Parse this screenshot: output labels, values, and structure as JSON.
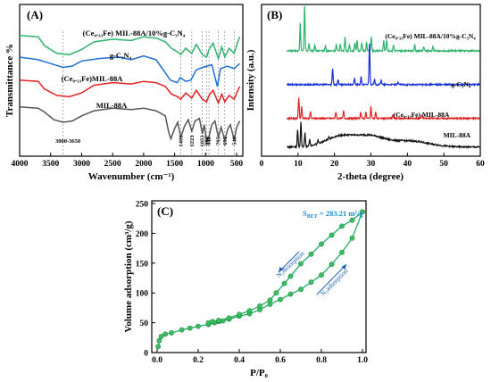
{
  "chart_data": [
    {
      "type": "line",
      "panel_label": "(A)",
      "xlabel": "Wavenumber (cm⁻¹)",
      "ylabel": "Transmittance %",
      "xlim": [
        4000,
        400
      ],
      "x_reversed": true,
      "x_ticks": [
        "4000",
        "3500",
        "3000",
        "2500",
        "2000",
        "1500",
        "1000",
        "500"
      ],
      "reference_lines": [
        3300,
        1401,
        1223,
        1053,
        984,
        946,
        795,
        691,
        540
      ],
      "annotations": [
        "3000-3650",
        "1401",
        "1223",
        "1053",
        "984",
        "946",
        "795",
        "691",
        "540"
      ],
      "series": [
        {
          "name": "(Ce₀.₃₃Fe) MIL-88A/10%g-C₃N₄",
          "color": "#2db36b",
          "offset": 3,
          "points": [
            [
              4000,
              8.9
            ],
            [
              3700,
              8.8
            ],
            [
              3600,
              8.1
            ],
            [
              3400,
              7.5
            ],
            [
              3200,
              7.4
            ],
            [
              3000,
              7.8
            ],
            [
              2800,
              8.4
            ],
            [
              2500,
              8.6
            ],
            [
              2200,
              8.5
            ],
            [
              2000,
              8.8
            ],
            [
              1800,
              8.7
            ],
            [
              1650,
              8.4
            ],
            [
              1550,
              7.9
            ],
            [
              1450,
              7.6
            ],
            [
              1401,
              7.4
            ],
            [
              1320,
              7.9
            ],
            [
              1223,
              7.5
            ],
            [
              1150,
              8.2
            ],
            [
              1053,
              7.4
            ],
            [
              984,
              7.2
            ],
            [
              946,
              7.8
            ],
            [
              880,
              8.3
            ],
            [
              795,
              7.1
            ],
            [
              740,
              8.0
            ],
            [
              691,
              7.2
            ],
            [
              620,
              7.9
            ],
            [
              540,
              7.5
            ],
            [
              480,
              8.4
            ],
            [
              450,
              8.8
            ]
          ]
        },
        {
          "name": "g-C₃N₄",
          "color": "#1f6fd1",
          "offset": 2,
          "points": [
            [
              4000,
              7.2
            ],
            [
              3700,
              7.0
            ],
            [
              3500,
              6.7
            ],
            [
              3300,
              6.4
            ],
            [
              3150,
              6.5
            ],
            [
              3000,
              6.9
            ],
            [
              2700,
              7.1
            ],
            [
              2400,
              7.2
            ],
            [
              2200,
              7.0
            ],
            [
              2000,
              7.3
            ],
            [
              1800,
              7.0
            ],
            [
              1640,
              5.9
            ],
            [
              1570,
              5.4
            ],
            [
              1460,
              5.2
            ],
            [
              1410,
              5.6
            ],
            [
              1320,
              5.3
            ],
            [
              1240,
              5.4
            ],
            [
              1150,
              6.2
            ],
            [
              1050,
              6.4
            ],
            [
              900,
              6.6
            ],
            [
              810,
              4.9
            ],
            [
              760,
              6.3
            ],
            [
              650,
              6.5
            ],
            [
              540,
              6.3
            ],
            [
              450,
              6.7
            ]
          ]
        },
        {
          "name": "(Ce₀.₃₃Fe)MIL-88A",
          "color": "#e32222",
          "offset": 1,
          "points": [
            [
              4000,
              5.4
            ],
            [
              3700,
              5.3
            ],
            [
              3600,
              4.7
            ],
            [
              3400,
              4.2
            ],
            [
              3200,
              4.1
            ],
            [
              3000,
              4.4
            ],
            [
              2800,
              5.0
            ],
            [
              2500,
              5.2
            ],
            [
              2200,
              5.1
            ],
            [
              2000,
              5.3
            ],
            [
              1800,
              5.2
            ],
            [
              1650,
              4.9
            ],
            [
              1550,
              4.3
            ],
            [
              1450,
              4.1
            ],
            [
              1401,
              3.9
            ],
            [
              1320,
              4.4
            ],
            [
              1223,
              4.0
            ],
            [
              1150,
              4.6
            ],
            [
              1053,
              3.9
            ],
            [
              984,
              3.7
            ],
            [
              946,
              4.2
            ],
            [
              880,
              4.6
            ],
            [
              795,
              3.6
            ],
            [
              740,
              4.3
            ],
            [
              691,
              3.7
            ],
            [
              620,
              4.2
            ],
            [
              540,
              3.9
            ],
            [
              480,
              4.6
            ],
            [
              450,
              4.9
            ]
          ]
        },
        {
          "name": "MIL-88A",
          "color": "#555555",
          "offset": 0,
          "points": [
            [
              4000,
              3.3
            ],
            [
              3700,
              3.2
            ],
            [
              3600,
              2.9
            ],
            [
              3450,
              2.3
            ],
            [
              3300,
              2.1
            ],
            [
              3150,
              2.2
            ],
            [
              3000,
              2.6
            ],
            [
              2800,
              3.0
            ],
            [
              2500,
              3.2
            ],
            [
              2200,
              3.1
            ],
            [
              2000,
              3.2
            ],
            [
              1800,
              3.0
            ],
            [
              1650,
              2.6
            ],
            [
              1600,
              1.4
            ],
            [
              1560,
              0.8
            ],
            [
              1500,
              1.6
            ],
            [
              1450,
              2.1
            ],
            [
              1401,
              0.9
            ],
            [
              1340,
              1.8
            ],
            [
              1280,
              2.3
            ],
            [
              1223,
              1.4
            ],
            [
              1170,
              2.2
            ],
            [
              1100,
              2.4
            ],
            [
              1053,
              1.2
            ],
            [
              1020,
              1.9
            ],
            [
              984,
              0.6
            ],
            [
              946,
              1.0
            ],
            [
              900,
              1.9
            ],
            [
              850,
              2.2
            ],
            [
              795,
              0.9
            ],
            [
              750,
              1.7
            ],
            [
              691,
              0.7
            ],
            [
              640,
              1.6
            ],
            [
              600,
              1.9
            ],
            [
              540,
              0.7
            ],
            [
              500,
              1.7
            ],
            [
              450,
              2.2
            ]
          ]
        }
      ]
    },
    {
      "type": "line",
      "panel_label": "(B)",
      "xlabel": "2-theta (degree)",
      "ylabel": "Intensity (a.u.)",
      "xlim": [
        0,
        60
      ],
      "x_ticks": [
        "0",
        "10",
        "20",
        "30",
        "40",
        "50",
        "60"
      ],
      "series": [
        {
          "name": "(Ce₀.₃₃Fe) MIL-88A/10%g-C₃N₄",
          "color": "#2db36b",
          "base": 8.0,
          "peaks": [
            [
              10.6,
              2.2
            ],
            [
              11.8,
              3.6
            ],
            [
              13.0,
              0.6
            ],
            [
              14.6,
              0.5
            ],
            [
              17.5,
              0.4
            ],
            [
              20.5,
              0.5
            ],
            [
              21.6,
              0.6
            ],
            [
              22.9,
              1.1
            ],
            [
              24.1,
              0.5
            ],
            [
              25.6,
              0.6
            ],
            [
              26.2,
              0.9
            ],
            [
              27.5,
              0.6
            ],
            [
              28.8,
              0.7
            ],
            [
              30.1,
              1.1
            ],
            [
              33.5,
              0.8
            ],
            [
              34.3,
              0.9
            ],
            [
              36.2,
              0.5
            ],
            [
              42.0,
              0.5
            ],
            [
              44.5,
              0.3
            ],
            [
              47.0,
              0.3
            ]
          ]
        },
        {
          "name": "g-C₃N₄",
          "color": "#1530d6",
          "base": 5.3,
          "peaks": [
            [
              19.5,
              1.3
            ],
            [
              21.0,
              0.4
            ],
            [
              25.5,
              0.5
            ],
            [
              27.3,
              0.6
            ],
            [
              29.6,
              3.3
            ],
            [
              31.0,
              0.4
            ],
            [
              32.8,
              0.4
            ],
            [
              37.5,
              0.2
            ]
          ]
        },
        {
          "name": "(Ce₀.₃₃Fe) MIL-88A",
          "color": "#e32222",
          "base": 2.6,
          "peaks": [
            [
              10.2,
              1.6
            ],
            [
              11.0,
              0.9
            ],
            [
              13.4,
              0.5
            ],
            [
              20.4,
              0.5
            ],
            [
              22.5,
              0.6
            ],
            [
              27.2,
              0.5
            ],
            [
              28.6,
              0.5
            ],
            [
              30.0,
              0.9
            ],
            [
              31.3,
              0.5
            ],
            [
              36.0,
              0.3
            ],
            [
              44.0,
              0.3
            ]
          ]
        },
        {
          "name": "MIL-88A",
          "color": "#111111",
          "base": 0.3,
          "peaks": [
            [
              9.9,
              1.4
            ],
            [
              10.8,
              2.0
            ],
            [
              11.9,
              1.1
            ],
            [
              13.2,
              0.5
            ],
            [
              15.5,
              0.3
            ],
            [
              18.5,
              0.2
            ]
          ],
          "humps": [
            [
              22.0,
              6.0,
              0.9
            ],
            [
              30.0,
              5.0,
              0.7
            ],
            [
              40.0,
              8.0,
              0.5
            ]
          ]
        }
      ]
    },
    {
      "type": "line",
      "panel_label": "(C)",
      "xlabel": "P/P₀",
      "ylabel": "Volume adsorption (cm³/g)",
      "xlim": [
        0,
        1.0
      ],
      "ylim": [
        0,
        250
      ],
      "x_ticks": [
        "0.0",
        "0.2",
        "0.4",
        "0.6",
        "0.8",
        "1.0"
      ],
      "y_ticks": [
        "0",
        "50",
        "100",
        "150",
        "200",
        "250"
      ],
      "bet_label": "S",
      "bet_subscript": "BET",
      "bet_value": " = 283.21 m²/g",
      "arrow_labels": [
        "N₂desorption",
        "N₂adsorption"
      ],
      "series": [
        {
          "name": "N₂ adsorption",
          "color": "#2db36b",
          "points": [
            [
              0.005,
              10
            ],
            [
              0.01,
              20
            ],
            [
              0.02,
              27
            ],
            [
              0.04,
              31
            ],
            [
              0.07,
              33
            ],
            [
              0.12,
              38
            ],
            [
              0.16,
              41
            ],
            [
              0.2,
              44
            ],
            [
              0.25,
              47
            ],
            [
              0.28,
              50
            ],
            [
              0.3,
              52
            ],
            [
              0.32,
              53
            ],
            [
              0.35,
              56
            ],
            [
              0.4,
              61
            ],
            [
              0.45,
              65
            ],
            [
              0.5,
              72
            ],
            [
              0.55,
              81
            ],
            [
              0.6,
              89
            ],
            [
              0.65,
              98
            ],
            [
              0.7,
              106
            ],
            [
              0.75,
              118
            ],
            [
              0.8,
              130
            ],
            [
              0.85,
              148
            ],
            [
              0.9,
              168
            ],
            [
              0.95,
              192
            ],
            [
              1.0,
              236
            ]
          ]
        },
        {
          "name": "N₂ desorption",
          "color": "#2db36b",
          "points": [
            [
              1.0,
              236
            ],
            [
              0.95,
              222
            ],
            [
              0.9,
              212
            ],
            [
              0.85,
              197
            ],
            [
              0.8,
              182
            ],
            [
              0.75,
              165
            ],
            [
              0.7,
              149
            ],
            [
              0.65,
              128
            ],
            [
              0.62,
              116
            ],
            [
              0.58,
              100
            ],
            [
              0.55,
              88
            ],
            [
              0.5,
              78
            ],
            [
              0.45,
              70
            ],
            [
              0.4,
              64
            ],
            [
              0.35,
              58
            ],
            [
              0.3,
              54
            ],
            [
              0.27,
              52
            ],
            [
              0.25,
              50
            ]
          ]
        }
      ]
    }
  ]
}
